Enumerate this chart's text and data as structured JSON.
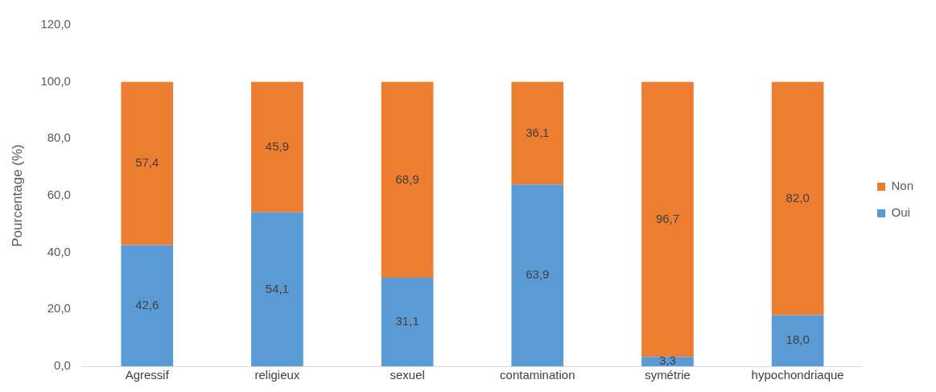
{
  "chart_data": {
    "type": "bar",
    "stacked": true,
    "ylabel": "Pourcentage (%)",
    "categories": [
      "Agressif",
      "religieux",
      "sexuel",
      "contamination",
      "symétrie",
      "hypochondriaque"
    ],
    "series": [
      {
        "name": "Oui",
        "color": "#5b9bd5",
        "values": [
          42.6,
          54.1,
          31.1,
          63.9,
          3.3,
          18.0
        ],
        "value_labels": [
          "42,6",
          "54,1",
          "31,1",
          "63,9",
          "3,3",
          "18,0"
        ]
      },
      {
        "name": "Non",
        "color": "#ed7d31",
        "values": [
          57.4,
          45.9,
          68.9,
          36.1,
          96.7,
          82.0
        ],
        "value_labels": [
          "57,4",
          "45,9",
          "68,9",
          "36,1",
          "96,7",
          "82,0"
        ]
      }
    ],
    "ylim": [
      0,
      120
    ],
    "yticks": [
      {
        "value": 0,
        "label": "0,0"
      },
      {
        "value": 20,
        "label": "20,0"
      },
      {
        "value": 40,
        "label": "40,0"
      },
      {
        "value": 60,
        "label": "60,0"
      },
      {
        "value": 80,
        "label": "80,0"
      },
      {
        "value": 100,
        "label": "100,0"
      },
      {
        "value": 120,
        "label": "120,0"
      }
    ],
    "grid": false,
    "legend": "right"
  }
}
